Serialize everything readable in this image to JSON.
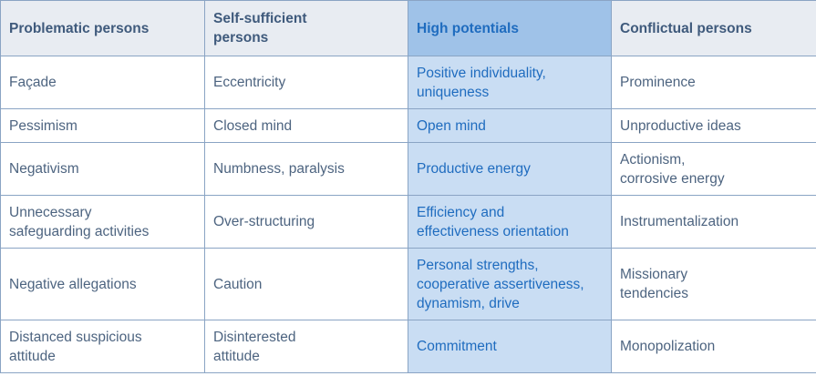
{
  "table": {
    "header": [
      "Problematic persons",
      "Self-sufficient\npersons",
      "High potentials",
      "Conflictual persons"
    ],
    "rows": [
      [
        "Façade",
        "Eccentricity",
        "Positive individuality,\nuniqueness",
        "Prominence"
      ],
      [
        "Pessimism",
        "Closed mind",
        "Open mind",
        "Unproductive ideas"
      ],
      [
        "Negativism",
        "Numbness, paralysis",
        "Productive energy",
        "Actionism,\ncorrosive energy"
      ],
      [
        "Unnecessary\nsafeguarding activities",
        "Over-structuring",
        "Efficiency and\neffectiveness orientation",
        "Instrumentalization"
      ],
      [
        "Negative allegations",
        "Caution",
        "Personal strengths,\ncooperative assertiveness,\ndynamism, drive",
        "Missionary\ntendencies"
      ],
      [
        "Distanced suspicious\nattitude",
        "Disinterested\nattitude",
        "Commitment",
        "Monopolization"
      ]
    ]
  }
}
